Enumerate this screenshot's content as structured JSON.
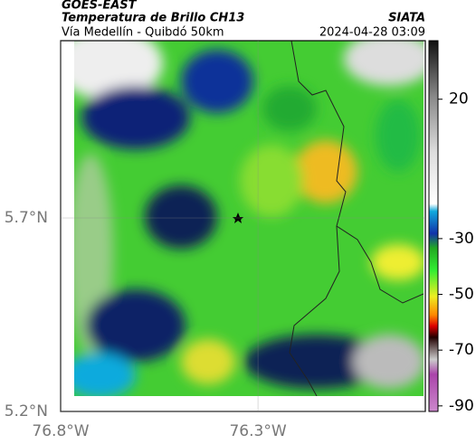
{
  "header": {
    "line1": "GOES-EAST",
    "line2": "Temperatura de Brillo CH13",
    "source": "SIATA",
    "subtitle": "Vía Medellín - Quibdó 50km",
    "datetime": "2024-04-28 03:09"
  },
  "map": {
    "xlim": [
      -76.8,
      -75.876
    ],
    "ylim": [
      5.2,
      6.158
    ],
    "xticks": [
      {
        "value": -76.8,
        "label": "76.8°W"
      },
      {
        "value": -76.3,
        "label": "76.3°W"
      }
    ],
    "yticks": [
      {
        "value": 5.7,
        "label": "5.7°N"
      },
      {
        "value": 5.2,
        "label": "5.2°N"
      }
    ]
  },
  "colorbar": {
    "lim": [
      41,
      -92
    ],
    "ticks": [
      20,
      -30,
      -50,
      -70,
      -90
    ]
  }
}
